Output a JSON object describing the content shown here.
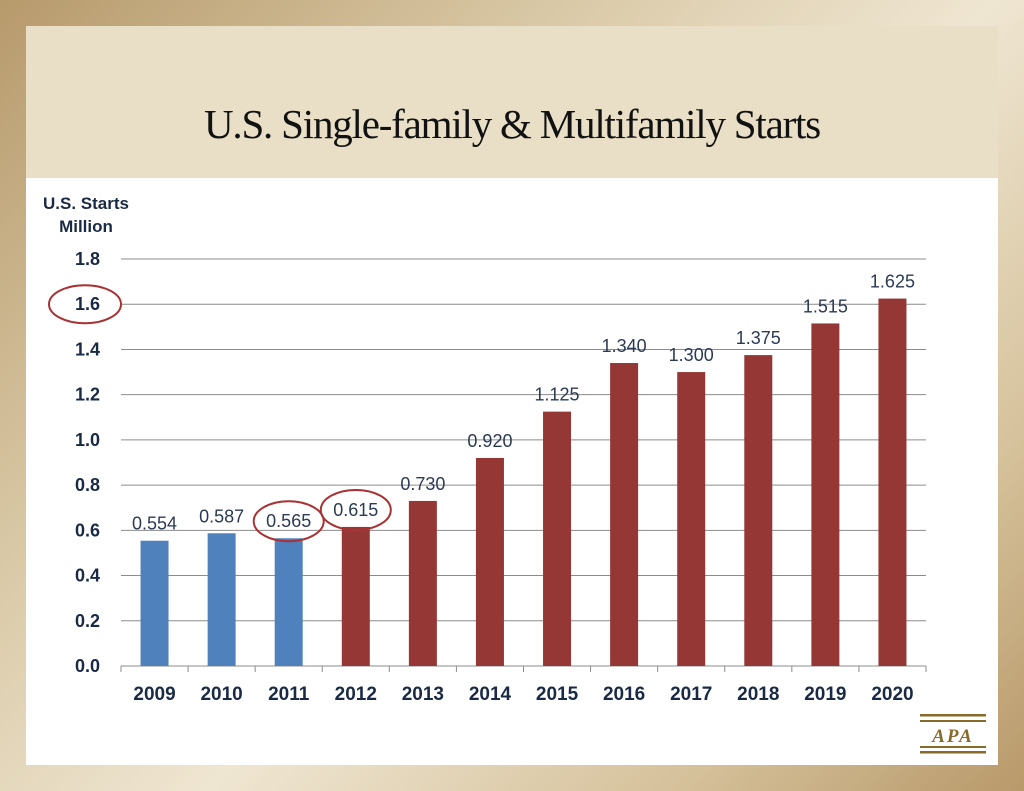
{
  "title": "U.S. Single-family & Multifamily Starts",
  "logo_text": "APA",
  "colors": {
    "actual": "#4f81bd",
    "forecast": "#953735",
    "highlight_circle": "#a83234",
    "logo": "#8a6a2a",
    "text": "#1a2a44"
  },
  "chart_data": {
    "type": "bar",
    "title": "",
    "ylabel_lines": [
      "U.S. Starts",
      "Million"
    ],
    "xlabel": "",
    "categories": [
      "2009",
      "2010",
      "2011",
      "2012",
      "2013",
      "2014",
      "2015",
      "2016",
      "2017",
      "2018",
      "2019",
      "2020"
    ],
    "values": [
      0.554,
      0.587,
      0.565,
      0.615,
      0.73,
      0.92,
      1.125,
      1.34,
      1.3,
      1.375,
      1.515,
      1.625
    ],
    "value_labels": [
      "0.554",
      "0.587",
      "0.565",
      "0.615",
      "0.730",
      "0.920",
      "1.125",
      "1.340",
      "1.300",
      "1.375",
      "1.515",
      "1.625"
    ],
    "bar_colors": [
      "actual",
      "actual",
      "actual",
      "forecast",
      "forecast",
      "forecast",
      "forecast",
      "forecast",
      "forecast",
      "forecast",
      "forecast",
      "forecast"
    ],
    "ylim": [
      0,
      1.8
    ],
    "yticks": [
      "0.0",
      "0.2",
      "0.4",
      "0.6",
      "0.8",
      "1.0",
      "1.2",
      "1.4",
      "1.6",
      "1.8"
    ],
    "grid": true,
    "legend": "none",
    "highlighted_values": [
      "0.565",
      "0.615"
    ],
    "highlighted_ticks": [
      "1.6"
    ]
  }
}
